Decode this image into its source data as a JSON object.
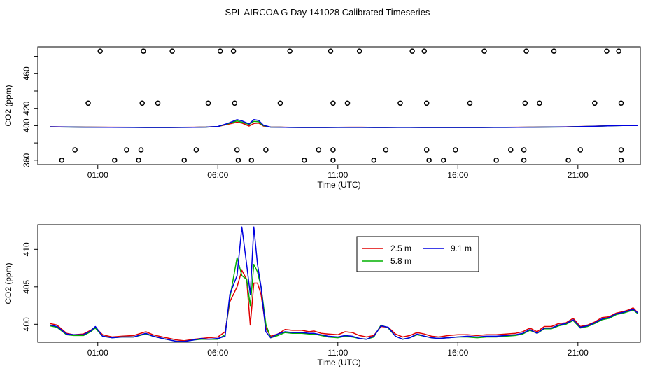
{
  "title": "SPL AIRCOA G  Day 141028  Calibrated Timeseries",
  "chart_data": [
    {
      "type": "line+scatter",
      "xlabel": "Time (UTC)",
      "ylabel": "CO2 (ppm)",
      "xlim": [
        -1.5,
        23.6
      ],
      "ylim": [
        355,
        491
      ],
      "x_ticks": [
        1,
        6,
        11,
        16,
        21
      ],
      "x_tick_labels": [
        "01:00",
        "06:00",
        "11:00",
        "16:00",
        "21:00"
      ],
      "y_ticks": [
        360,
        380,
        400,
        420,
        440,
        460,
        480
      ],
      "y_tick_labels": [
        "360",
        "",
        "400",
        "420",
        "",
        "460",
        ""
      ],
      "grid": false,
      "scatter_points": [
        [
          -0.5,
          360
        ],
        [
          0.05,
          372
        ],
        [
          0.6,
          426
        ],
        [
          1.1,
          486
        ],
        [
          1.7,
          360
        ],
        [
          2.2,
          372
        ],
        [
          2.7,
          360
        ],
        [
          2.8,
          372
        ],
        [
          2.85,
          426
        ],
        [
          2.9,
          486
        ],
        [
          3.5,
          426
        ],
        [
          4.1,
          486
        ],
        [
          4.6,
          360
        ],
        [
          5.1,
          372
        ],
        [
          5.6,
          426
        ],
        [
          6.1,
          486
        ],
        [
          6.65,
          486
        ],
        [
          6.7,
          426
        ],
        [
          6.8,
          372
        ],
        [
          6.85,
          360
        ],
        [
          7.4,
          360
        ],
        [
          8,
          372
        ],
        [
          8.6,
          426
        ],
        [
          9.0,
          486
        ],
        [
          9.6,
          360
        ],
        [
          10.2,
          372
        ],
        [
          10.7,
          486
        ],
        [
          10.8,
          426
        ],
        [
          10.8,
          372
        ],
        [
          10.8,
          360
        ],
        [
          11.4,
          426
        ],
        [
          11.9,
          486
        ],
        [
          12.5,
          360
        ],
        [
          13.0,
          372
        ],
        [
          13.6,
          426
        ],
        [
          14.1,
          486
        ],
        [
          14.6,
          486
        ],
        [
          14.7,
          426
        ],
        [
          14.7,
          372
        ],
        [
          14.8,
          360
        ],
        [
          15.4,
          360
        ],
        [
          15.9,
          372
        ],
        [
          16.5,
          426
        ],
        [
          17.1,
          486
        ],
        [
          17.6,
          360
        ],
        [
          18.2,
          372
        ],
        [
          18.75,
          372
        ],
        [
          18.75,
          360
        ],
        [
          18.8,
          426
        ],
        [
          18.85,
          486
        ],
        [
          19.4,
          426
        ],
        [
          20.0,
          486
        ],
        [
          20.6,
          360
        ],
        [
          21.1,
          372
        ],
        [
          21.7,
          426
        ],
        [
          22.2,
          486
        ],
        [
          22.7,
          486
        ],
        [
          22.8,
          426
        ],
        [
          22.8,
          372
        ],
        [
          22.8,
          360
        ]
      ],
      "series": [
        {
          "name": "2.5 m",
          "color": "#e00000",
          "x": [
            -1,
            -0.2,
            0.5,
            1.5,
            2.5,
            3,
            3.5,
            4,
            4.5,
            5,
            5.5,
            6,
            6.4,
            6.8,
            7,
            7.3,
            7.5,
            7.7,
            7.9,
            8.2,
            8.6,
            9,
            9.5,
            10,
            10.5,
            11,
            11.5,
            12,
            12.5,
            13,
            13.5,
            14,
            14.5,
            15,
            15.5,
            16,
            16.5,
            17,
            17.5,
            18,
            18.5,
            19,
            19.5,
            20,
            20.5,
            21,
            21.5,
            22,
            22.5,
            23,
            23.5
          ],
          "values": [
            398.7,
            398.5,
            398.3,
            398.2,
            398.1,
            398.0,
            398.0,
            398.0,
            398.1,
            398.2,
            398.4,
            399.0,
            401.5,
            404.0,
            403.0,
            399.5,
            402.5,
            403.0,
            399.5,
            398.4,
            398.3,
            398.1,
            398.0,
            398.0,
            398.0,
            398.1,
            398.2,
            398.2,
            398.0,
            398.0,
            398.1,
            398.1,
            398.0,
            398.0,
            398.0,
            398.0,
            398.0,
            398.0,
            398.1,
            398.1,
            398.2,
            398.3,
            398.4,
            398.5,
            398.6,
            398.9,
            399.2,
            399.6,
            400.0,
            400.3,
            400.3
          ]
        },
        {
          "name": "5.8 m",
          "color": "#00b000",
          "x": [
            -1,
            -0.2,
            0.5,
            1.5,
            2.5,
            3,
            3.5,
            4,
            4.5,
            5,
            5.5,
            6,
            6.4,
            6.8,
            7,
            7.3,
            7.5,
            7.7,
            7.9,
            8.2,
            8.6,
            9,
            9.5,
            10,
            10.5,
            11,
            11.5,
            12,
            12.5,
            13,
            13.5,
            14,
            14.5,
            15,
            15.5,
            16,
            16.5,
            17,
            17.5,
            18,
            18.5,
            19,
            19.5,
            20,
            20.5,
            21,
            21.5,
            22,
            22.5,
            23,
            23.5
          ],
          "values": [
            398.6,
            398.4,
            398.2,
            398.1,
            398.0,
            397.9,
            397.9,
            397.9,
            398.0,
            398.1,
            398.3,
            399.0,
            402.0,
            405.5,
            404.0,
            401.5,
            405.0,
            404.5,
            400.0,
            398.3,
            398.2,
            398.0,
            397.9,
            397.9,
            397.9,
            398.0,
            398.0,
            398.0,
            397.9,
            397.9,
            398.0,
            398.0,
            397.9,
            397.9,
            397.9,
            397.9,
            397.9,
            397.9,
            398.0,
            398.0,
            398.1,
            398.2,
            398.3,
            398.4,
            398.5,
            398.8,
            399.1,
            399.5,
            399.9,
            400.2,
            400.2
          ]
        },
        {
          "name": "9.1 m",
          "color": "#0000e0",
          "x": [
            -1,
            -0.2,
            0.5,
            1.5,
            2.5,
            3,
            3.5,
            4,
            4.5,
            5,
            5.5,
            6,
            6.4,
            6.8,
            7,
            7.3,
            7.5,
            7.7,
            7.9,
            8.2,
            8.6,
            9,
            9.5,
            10,
            10.5,
            11,
            11.5,
            12,
            12.5,
            13,
            13.5,
            14,
            14.5,
            15,
            15.5,
            16,
            16.5,
            17,
            17.5,
            18,
            18.5,
            19,
            19.5,
            20,
            20.5,
            21,
            21.5,
            22,
            22.5,
            23,
            23.5
          ],
          "values": [
            398.6,
            398.4,
            398.2,
            398.1,
            398.0,
            397.9,
            397.9,
            397.9,
            398.0,
            398.1,
            398.3,
            399.0,
            402.5,
            407.0,
            405.5,
            402.0,
            407.0,
            406.0,
            400.5,
            398.3,
            398.2,
            398.0,
            397.9,
            397.9,
            397.9,
            398.0,
            398.0,
            398.0,
            397.9,
            397.9,
            398.0,
            398.0,
            397.9,
            397.9,
            397.9,
            397.9,
            397.9,
            397.9,
            398.0,
            398.0,
            398.1,
            398.2,
            398.3,
            398.4,
            398.5,
            398.8,
            399.1,
            399.5,
            399.9,
            400.2,
            400.2
          ]
        }
      ]
    },
    {
      "type": "line",
      "xlabel": "Time (UTC)",
      "ylabel": "CO2 (ppm)",
      "xlim": [
        -1.5,
        23.6
      ],
      "ylim": [
        397.6,
        413.3
      ],
      "x_ticks": [
        1,
        6,
        11,
        16,
        21
      ],
      "x_tick_labels": [
        "01:00",
        "06:00",
        "11:00",
        "16:00",
        "21:00"
      ],
      "y_ticks": [
        400,
        405,
        410
      ],
      "y_tick_labels": [
        "400",
        "405",
        "410"
      ],
      "grid": false,
      "legend": {
        "position": "top-center",
        "entries": [
          {
            "label": "2.5 m",
            "color": "#e00000"
          },
          {
            "label": "9.1 m",
            "color": "#0000e0"
          },
          {
            "label": "5.8 m",
            "color": "#00b000"
          }
        ]
      },
      "series": [
        {
          "name": "2.5 m",
          "color": "#e00000",
          "x": [
            -1,
            -0.7,
            -0.3,
            0,
            0.4,
            0.7,
            0.9,
            1.2,
            1.6,
            2,
            2.5,
            3,
            3.3,
            3.7,
            4,
            4.3,
            4.6,
            5,
            5.3,
            5.6,
            6,
            6.3,
            6.5,
            6.8,
            7,
            7.2,
            7.35,
            7.5,
            7.65,
            7.8,
            8,
            8.2,
            8.5,
            8.8,
            9.1,
            9.5,
            9.8,
            10,
            10.3,
            10.6,
            11,
            11.3,
            11.6,
            11.9,
            12.2,
            12.5,
            12.8,
            13.1,
            13.4,
            13.7,
            14,
            14.3,
            14.6,
            14.9,
            15.2,
            15.6,
            16,
            16.4,
            16.8,
            17.2,
            17.6,
            18,
            18.4,
            18.7,
            19,
            19.3,
            19.6,
            19.9,
            20.2,
            20.5,
            20.8,
            21.1,
            21.4,
            21.7,
            22,
            22.3,
            22.6,
            22.9,
            23.1,
            23.3,
            23.5
          ],
          "values": [
            400.1,
            399.9,
            398.8,
            398.6,
            398.7,
            399.2,
            399.6,
            398.6,
            398.3,
            398.4,
            398.5,
            399.0,
            398.6,
            398.3,
            398.1,
            397.9,
            397.8,
            398.0,
            398.1,
            398.2,
            398.3,
            399.0,
            403.0,
            405.0,
            407.2,
            406.0,
            399.9,
            405.5,
            405.5,
            404.0,
            399.5,
            398.4,
            398.7,
            399.3,
            399.2,
            399.2,
            399.0,
            399.1,
            398.8,
            398.7,
            398.6,
            399.0,
            398.9,
            398.5,
            398.3,
            398.5,
            399.7,
            399.6,
            398.7,
            398.3,
            398.5,
            398.9,
            398.7,
            398.4,
            398.3,
            398.5,
            398.6,
            398.6,
            398.5,
            398.6,
            398.6,
            398.7,
            398.8,
            399.0,
            399.5,
            399.0,
            399.7,
            399.7,
            400.1,
            400.2,
            400.8,
            399.7,
            399.9,
            400.3,
            400.9,
            401.0,
            401.5,
            401.7,
            401.9,
            402.2,
            401.5
          ]
        },
        {
          "name": "5.8 m",
          "color": "#00b000",
          "x": [
            -1,
            -0.7,
            -0.3,
            0,
            0.4,
            0.7,
            0.9,
            1.2,
            1.6,
            2,
            2.5,
            3,
            3.3,
            3.7,
            4,
            4.3,
            4.6,
            5,
            5.3,
            5.6,
            6,
            6.3,
            6.5,
            6.8,
            7,
            7.2,
            7.35,
            7.5,
            7.65,
            7.8,
            8,
            8.2,
            8.5,
            8.8,
            9.1,
            9.5,
            9.8,
            10,
            10.3,
            10.6,
            11,
            11.3,
            11.6,
            11.9,
            12.2,
            12.5,
            12.8,
            13.1,
            13.4,
            13.7,
            14,
            14.3,
            14.6,
            14.9,
            15.2,
            15.6,
            16,
            16.4,
            16.8,
            17.2,
            17.6,
            18,
            18.4,
            18.7,
            19,
            19.3,
            19.6,
            19.9,
            20.2,
            20.5,
            20.8,
            21.1,
            21.4,
            21.7,
            22,
            22.3,
            22.6,
            22.9,
            23.1,
            23.3,
            23.5
          ],
          "values": [
            399.8,
            399.6,
            398.6,
            398.5,
            398.5,
            399.0,
            399.5,
            398.4,
            398.2,
            398.3,
            398.3,
            398.7,
            398.4,
            398.1,
            397.9,
            397.7,
            397.7,
            397.9,
            398.0,
            398.0,
            398.0,
            398.6,
            403.5,
            408.9,
            406.5,
            406.0,
            402.5,
            408.0,
            407.0,
            405.0,
            400.0,
            398.2,
            398.5,
            398.9,
            398.8,
            398.8,
            398.7,
            398.7,
            398.5,
            398.3,
            398.2,
            398.4,
            398.3,
            398.1,
            398.0,
            398.3,
            399.9,
            399.5,
            398.4,
            398.0,
            398.2,
            398.6,
            398.4,
            398.2,
            398.1,
            398.2,
            398.3,
            398.3,
            398.2,
            398.3,
            398.3,
            398.4,
            398.5,
            398.7,
            399.2,
            398.8,
            399.4,
            399.4,
            399.8,
            400.0,
            400.5,
            399.5,
            399.7,
            400.1,
            400.6,
            400.8,
            401.3,
            401.5,
            401.7,
            401.9,
            401.4
          ]
        },
        {
          "name": "9.1 m",
          "color": "#0000e0",
          "x": [
            -1,
            -0.7,
            -0.3,
            0,
            0.4,
            0.7,
            0.9,
            1.2,
            1.6,
            2,
            2.5,
            3,
            3.3,
            3.7,
            4,
            4.3,
            4.6,
            5,
            5.3,
            5.6,
            6,
            6.3,
            6.5,
            6.8,
            7,
            7.2,
            7.35,
            7.5,
            7.65,
            7.8,
            8,
            8.2,
            8.5,
            8.8,
            9.1,
            9.5,
            9.8,
            10,
            10.3,
            10.6,
            11,
            11.3,
            11.6,
            11.9,
            12.2,
            12.5,
            12.8,
            13.1,
            13.4,
            13.7,
            14,
            14.3,
            14.6,
            14.9,
            15.2,
            15.6,
            16,
            16.4,
            16.8,
            17.2,
            17.6,
            18,
            18.4,
            18.7,
            19,
            19.3,
            19.6,
            19.9,
            20.2,
            20.5,
            20.8,
            21.1,
            21.4,
            21.7,
            22,
            22.3,
            22.6,
            22.9,
            23.1,
            23.3,
            23.5
          ],
          "values": [
            399.9,
            399.7,
            398.7,
            398.6,
            398.6,
            399.1,
            399.7,
            398.4,
            398.2,
            398.3,
            398.3,
            398.8,
            398.4,
            398.1,
            397.9,
            397.7,
            397.7,
            397.9,
            398.1,
            398.0,
            398.1,
            398.4,
            404.0,
            406.5,
            413.0,
            408.0,
            404.0,
            413.0,
            408.0,
            405.0,
            399.0,
            398.2,
            398.7,
            399.0,
            398.9,
            398.9,
            398.8,
            398.8,
            398.6,
            398.4,
            398.3,
            398.5,
            398.4,
            398.1,
            398.0,
            398.4,
            399.8,
            399.6,
            398.4,
            398.0,
            398.2,
            398.7,
            398.4,
            398.2,
            398.1,
            398.2,
            398.3,
            398.4,
            398.3,
            398.4,
            398.4,
            398.5,
            398.6,
            398.8,
            399.3,
            398.8,
            399.5,
            399.5,
            399.9,
            400.1,
            400.6,
            399.6,
            399.8,
            400.2,
            400.7,
            400.9,
            401.4,
            401.6,
            401.8,
            402.0,
            401.5
          ]
        }
      ]
    }
  ]
}
